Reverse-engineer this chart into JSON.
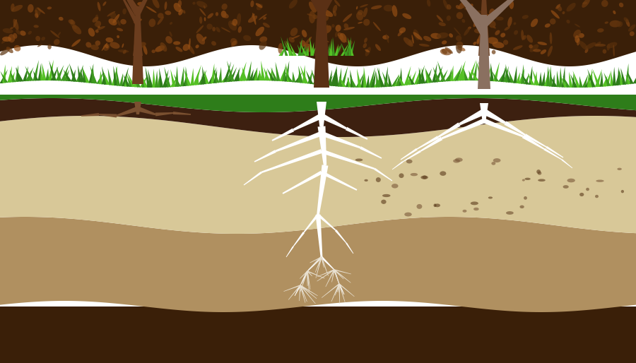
{
  "bg_color": "#ffffff",
  "top_soil_color": "#3a1f08",
  "top_soil_texture": "#2a1205",
  "topsoil_layer_color": "#3d2010",
  "sandy_layer_color": "#d8c898",
  "clay_layer_color": "#b09060",
  "deep_dark_color": "#3a1f08",
  "grass_dark": "#2e7d1a",
  "grass_mid": "#3d9920",
  "grass_light": "#55c025",
  "tree_brown": "#6b3d1e",
  "tree_brown_center": "#5a3015",
  "leaf_green1": "#8dc84a",
  "leaf_green2": "#a0d860",
  "leaf_green3": "#6aaa2a",
  "bare_branch_color": "#b0a898",
  "bare_branch_dark": "#8a7060",
  "root_white": "#ffffff",
  "root_off_white": "#e8e0d0",
  "root_brown": "#7a5030",
  "dot_colors": [
    "#5a3a1a",
    "#6a4a2a",
    "#7a5838"
  ]
}
